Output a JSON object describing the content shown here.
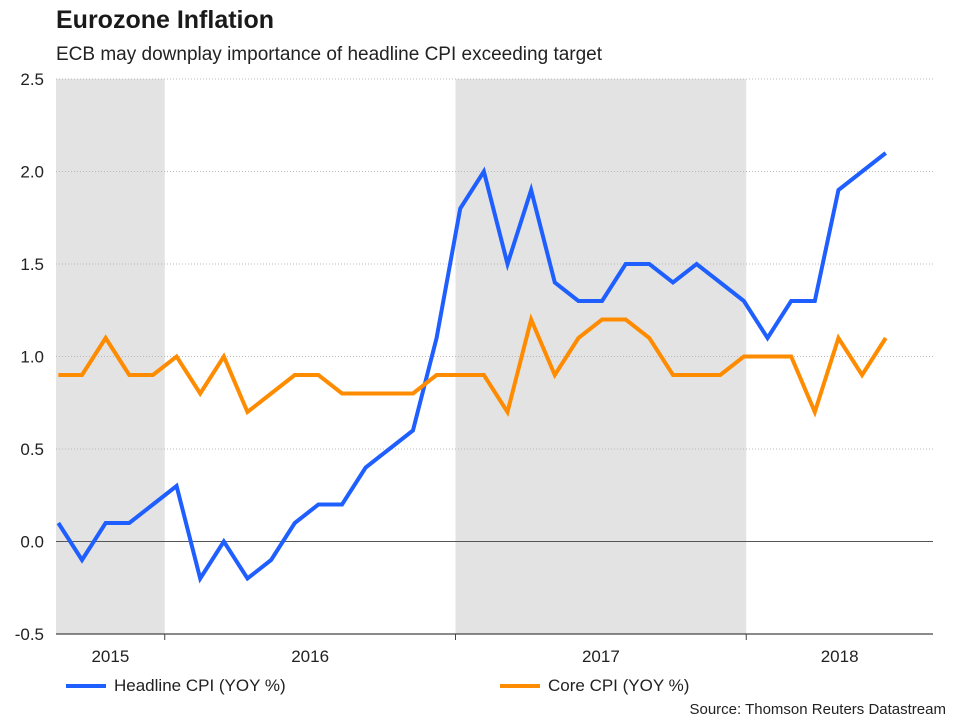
{
  "header": {
    "title": "Eurozone Inflation",
    "subtitle": "ECB may downplay importance of headline CPI exceeding target"
  },
  "source": "Source: Thomson Reuters Datastream",
  "colors": {
    "headline": "#1f5fff",
    "core": "#ff8c00",
    "shade": "#e3e3e3",
    "grid": "#b8b8b8",
    "zero": "#555555"
  },
  "chart_data": {
    "type": "line",
    "title": "Eurozone Inflation",
    "subtitle": "ECB may downplay importance of headline CPI exceeding target",
    "xlabel": "",
    "ylabel": "",
    "ylim": [
      -0.5,
      2.5
    ],
    "yticks": [
      "-0.5",
      "0.0",
      "0.5",
      "1.0",
      "1.5",
      "2.0",
      "2.5"
    ],
    "ytick_values": [
      -0.5,
      0.0,
      0.5,
      1.0,
      1.5,
      2.0,
      2.5
    ],
    "x_range_months": [
      -0.1,
      37
    ],
    "years": [
      {
        "label": "2015",
        "start": -0.1,
        "end": 4.5
      },
      {
        "label": "2016",
        "start": 4.5,
        "end": 16.8
      },
      {
        "label": "2017",
        "start": 16.8,
        "end": 29.1
      },
      {
        "label": "2018",
        "start": 29.1,
        "end": 37
      }
    ],
    "shaded_periods": [
      [
        -0.1,
        4.5
      ],
      [
        16.8,
        29.1
      ]
    ],
    "grid": true,
    "legend_position": "bottom",
    "series": [
      {
        "name": "Headline CPI (YOY %)",
        "color": "#1f5fff",
        "x": [
          0,
          1,
          2,
          3,
          4,
          5,
          6,
          7,
          8,
          9,
          10,
          11,
          12,
          13,
          14,
          15,
          16,
          17,
          18,
          19,
          20,
          21,
          22,
          23,
          24,
          25,
          26,
          27,
          28,
          29,
          30,
          31,
          32,
          33,
          34,
          35
        ],
        "values": [
          0.1,
          -0.1,
          0.1,
          0.1,
          0.2,
          0.3,
          -0.2,
          0.0,
          -0.2,
          -0.1,
          0.1,
          0.2,
          0.2,
          0.4,
          0.5,
          0.6,
          1.1,
          1.8,
          2.0,
          1.5,
          1.9,
          1.4,
          1.3,
          1.3,
          1.5,
          1.5,
          1.4,
          1.5,
          1.4,
          1.3,
          1.1,
          1.3,
          1.3,
          1.9,
          2.0,
          2.1
        ]
      },
      {
        "name": "Core CPI (YOY %)",
        "color": "#ff8c00",
        "x": [
          0,
          1,
          2,
          3,
          4,
          5,
          6,
          7,
          8,
          9,
          10,
          11,
          12,
          13,
          14,
          15,
          16,
          17,
          18,
          19,
          20,
          21,
          22,
          23,
          24,
          25,
          26,
          27,
          28,
          29,
          30,
          31,
          32,
          33,
          34,
          35
        ],
        "values": [
          0.9,
          0.9,
          1.1,
          0.9,
          0.9,
          1.0,
          0.8,
          1.0,
          0.7,
          0.8,
          0.9,
          0.9,
          0.8,
          0.8,
          0.8,
          0.8,
          0.9,
          0.9,
          0.9,
          0.7,
          1.2,
          0.9,
          1.1,
          1.2,
          1.2,
          1.1,
          0.9,
          0.9,
          0.9,
          1.0,
          1.0,
          1.0,
          0.7,
          1.1,
          0.9,
          1.1
        ]
      }
    ]
  }
}
